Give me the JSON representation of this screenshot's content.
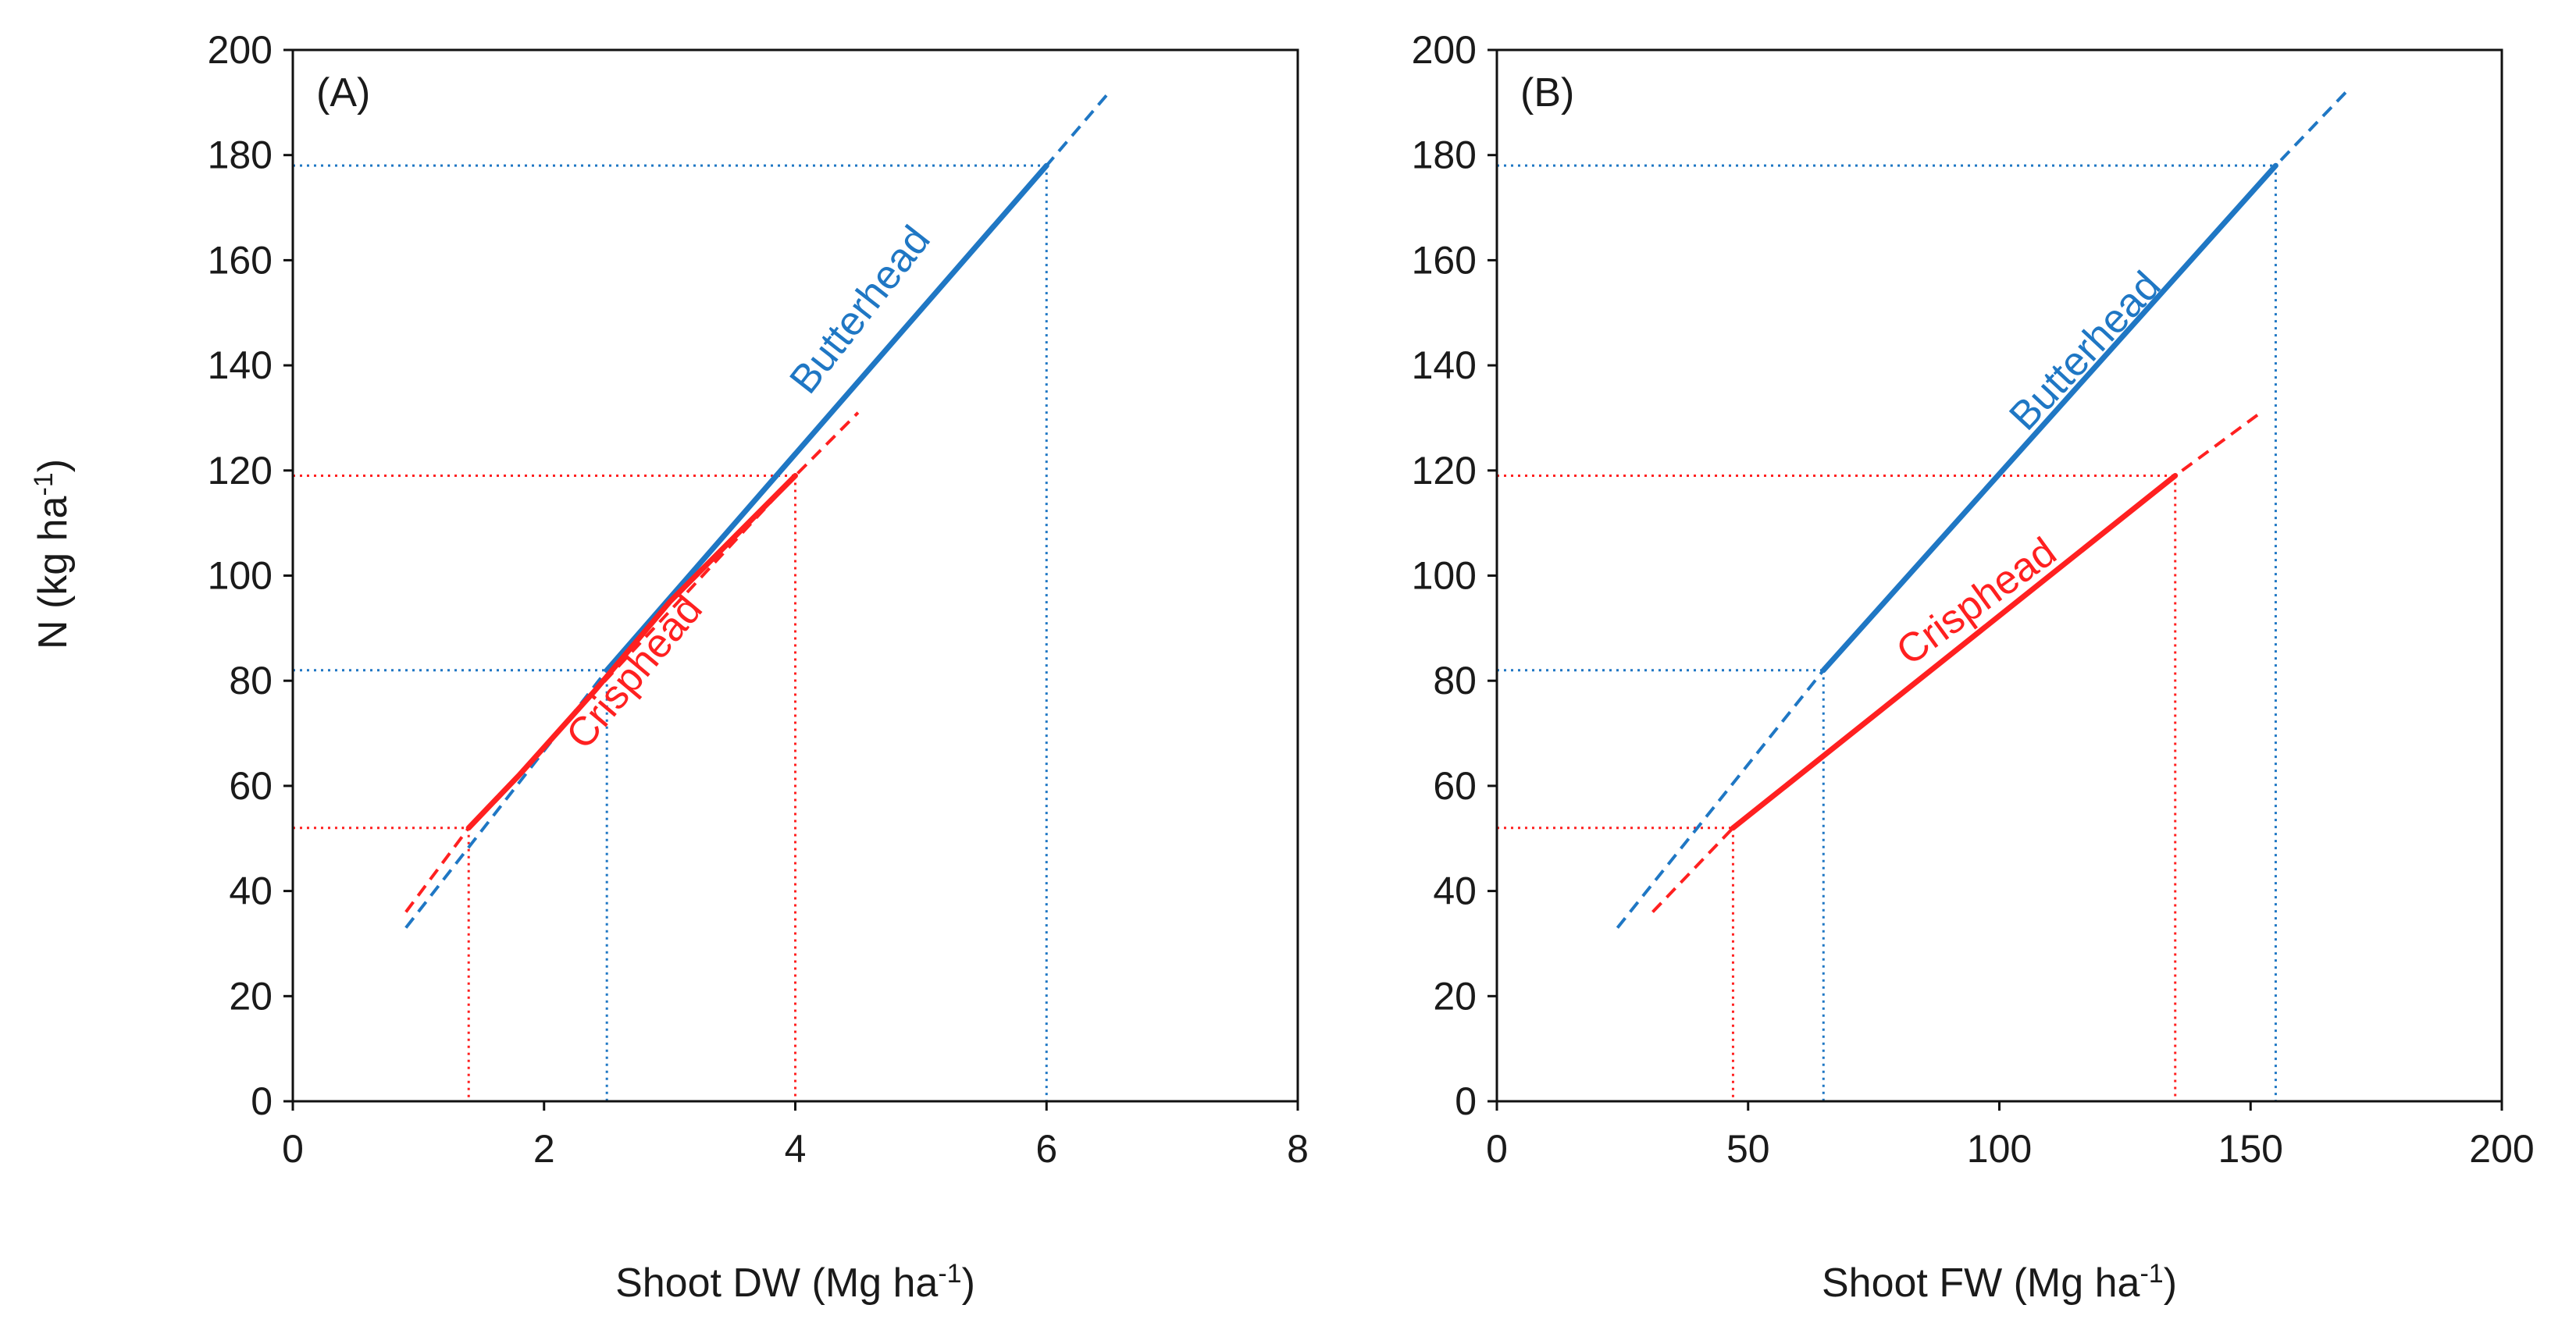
{
  "ylabel": "N (kg ha",
  "ylabel_sup": "-1",
  "ylabel_close": ")",
  "colors": {
    "butterhead": "#1f77c4",
    "crisphead": "#ff2020",
    "axis": "#111111"
  },
  "chart_data": [
    {
      "type": "line",
      "panel_label": "(A)",
      "xlabel": "Shoot DW (Mg ha",
      "xlabel_sup": "-1",
      "xlabel_close": ")",
      "xlim": [
        0,
        8
      ],
      "ylim": [
        0,
        200
      ],
      "xticks": [
        "0",
        "2",
        "4",
        "6",
        "8"
      ],
      "yticks": [
        "0",
        "20",
        "40",
        "60",
        "80",
        "100",
        "120",
        "140",
        "160",
        "180",
        "200"
      ],
      "series": [
        {
          "name": "Butterhead",
          "color": "#1f77c4",
          "solid": [
            [
              2.5,
              82
            ],
            [
              6.0,
              178
            ]
          ],
          "extrapolated": [
            [
              0.9,
              33
            ],
            [
              2.5,
              82
            ],
            [
              6.0,
              178
            ],
            [
              6.5,
              192
            ]
          ],
          "reference_points": [
            [
              2.5,
              82
            ],
            [
              6.0,
              178
            ]
          ],
          "label_at": [
            4.6,
            149
          ],
          "label_angle": -52
        },
        {
          "name": "Crisphead",
          "color": "#ff2020",
          "solid": [
            [
              1.4,
              52
            ],
            [
              1.8,
              62
            ],
            [
              2.4,
              78
            ],
            [
              3.0,
              95
            ],
            [
              3.5,
              107
            ],
            [
              4.0,
              119
            ]
          ],
          "extrapolated": [
            [
              0.9,
              36
            ],
            [
              1.4,
              52
            ],
            [
              4.0,
              119
            ],
            [
              4.5,
              131
            ]
          ],
          "reference_points": [
            [
              1.4,
              52
            ],
            [
              4.0,
              119
            ]
          ],
          "label_at": [
            2.8,
            80
          ],
          "label_angle": -50
        }
      ]
    },
    {
      "type": "line",
      "panel_label": "(B)",
      "xlabel": "Shoot FW (Mg ha",
      "xlabel_sup": "-1",
      "xlabel_close": ")",
      "xlim": [
        0,
        200
      ],
      "ylim": [
        0,
        200
      ],
      "xticks": [
        "0",
        "50",
        "100",
        "150",
        "200"
      ],
      "yticks": [
        "0",
        "20",
        "40",
        "60",
        "80",
        "100",
        "120",
        "140",
        "160",
        "180",
        "200"
      ],
      "series": [
        {
          "name": "Butterhead",
          "color": "#1f77c4",
          "solid": [
            [
              65,
              82
            ],
            [
              155,
              178
            ]
          ],
          "extrapolated": [
            [
              24,
              33
            ],
            [
              65,
              82
            ],
            [
              155,
              178
            ],
            [
              169,
              192
            ]
          ],
          "reference_points": [
            [
              65,
              82
            ],
            [
              155,
              178
            ]
          ],
          "label_at": [
            119,
            141
          ],
          "label_angle": -47
        },
        {
          "name": "Crisphead",
          "color": "#ff2020",
          "solid": [
            [
              47,
              52
            ],
            [
              135,
              119
            ]
          ],
          "extrapolated": [
            [
              31,
              36
            ],
            [
              47,
              52
            ],
            [
              135,
              119
            ],
            [
              152,
              131
            ]
          ],
          "reference_points": [
            [
              47,
              52
            ],
            [
              135,
              119
            ]
          ],
          "label_at": [
            97,
            93
          ],
          "label_angle": -36
        }
      ]
    }
  ]
}
